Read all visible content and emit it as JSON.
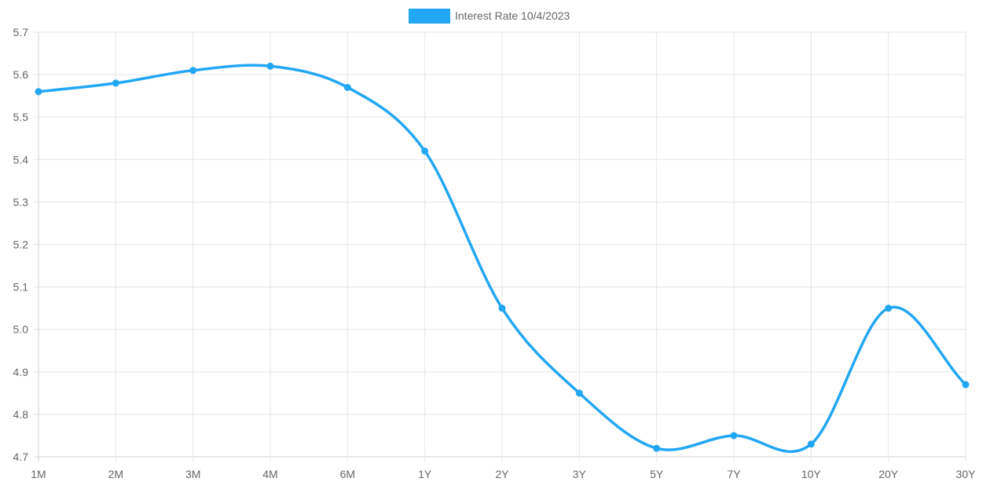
{
  "chart_data": {
    "type": "line",
    "categories": [
      "1M",
      "2M",
      "3M",
      "4M",
      "6M",
      "1Y",
      "2Y",
      "3Y",
      "5Y",
      "7Y",
      "10Y",
      "20Y",
      "30Y"
    ],
    "series": [
      {
        "name": "Interest Rate 10/4/2023",
        "values": [
          5.56,
          5.58,
          5.61,
          5.62,
          5.57,
          5.42,
          5.05,
          4.85,
          4.72,
          4.75,
          4.73,
          5.05,
          4.87
        ],
        "color": "#22a7f5"
      }
    ],
    "ylim": [
      4.7,
      5.7
    ],
    "yticks": [
      "5.7",
      "5.6",
      "5.5",
      "5.4",
      "5.3",
      "5.2",
      "5.1",
      "5.0",
      "4.9",
      "4.8",
      "4.7"
    ],
    "grid": true,
    "legend_position": "top-center",
    "curve": "smooth"
  }
}
